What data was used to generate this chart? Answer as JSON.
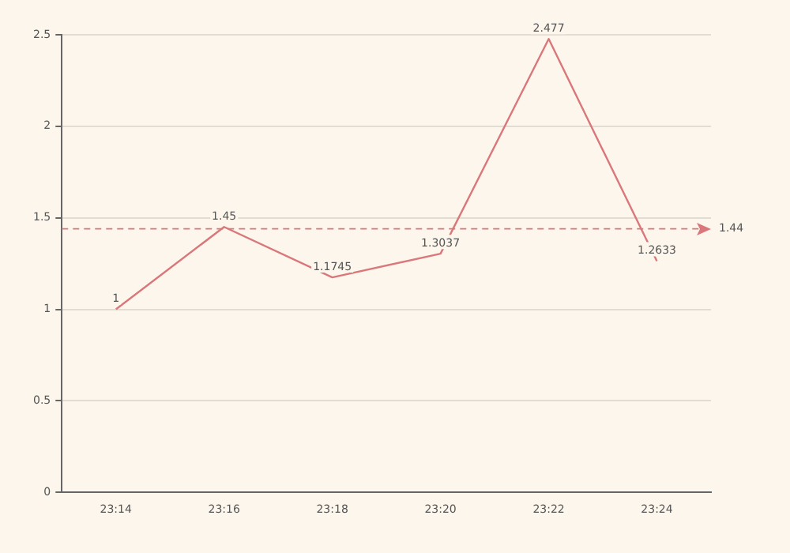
{
  "chart_data": {
    "type": "line",
    "categories": [
      "23:14",
      "23:16",
      "23:18",
      "23:20",
      "23:22",
      "23:24"
    ],
    "series": [
      {
        "color": "#d9777a",
        "values": [
          1,
          1.45,
          1.1745,
          1.3037,
          2.477,
          1.2633
        ]
      }
    ],
    "ylim": [
      0,
      2.5
    ],
    "yticks": [
      0,
      0.5,
      1,
      1.5,
      2,
      2.5
    ],
    "grid": "y",
    "legend": false,
    "marker": "none",
    "line_style": "solid",
    "data_labels": true,
    "ref_lines": [
      {
        "axis": "y",
        "value": 1.44,
        "label": "1.44",
        "color": "#d9777a",
        "line_style": "dashed"
      }
    ]
  }
}
